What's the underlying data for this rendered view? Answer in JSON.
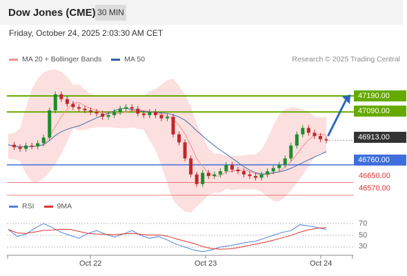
{
  "header": {
    "title": "Dow Jones (CME)",
    "timeframe": "30 MIN"
  },
  "datetime": "Friday, October 24, 2025 2:03:30 AM CET",
  "legend": {
    "ma20_label": "MA 20 + Bollinger Bands",
    "ma50_label": "MA 50"
  },
  "credit": "Research © 2025 Trading Central",
  "levels": {
    "r2": "47190.00",
    "r1": "47090.00",
    "last": "46913.00",
    "s1": "46760.00",
    "s2": "46650.00",
    "s3": "46570.00"
  },
  "rsi_legend": {
    "rsi_label": "RSI",
    "ma_label": "9MA"
  },
  "rsi_levels": [
    "70",
    "50",
    "30"
  ],
  "x_axis": [
    "Oct 22",
    "Oct 23",
    "Oct 24"
  ],
  "colors": {
    "resistance": "#66aa00",
    "support": "#3f6fdc",
    "minor_support": "#e03030",
    "last_price": "#333333",
    "candle_up": "#1e8c2e",
    "candle_down": "#c0282c",
    "bollinger_fill": "#fbd9d9",
    "ma20": "#f29090",
    "ma50": "#3f6fa8",
    "rsi": "#4f7fd9",
    "rsi_ma": "#e03030",
    "arrow": "#2b66b8"
  },
  "chart_data": {
    "type": "candlestick",
    "price_unit": "index points",
    "horizontal_levels": [
      47190,
      47090,
      46913,
      46760,
      46650,
      46570
    ],
    "close_series": [
      46885,
      46870,
      46860,
      46880,
      46875,
      46895,
      46930,
      47100,
      47200,
      47170,
      47140,
      47120,
      47110,
      47100,
      47090,
      47080,
      47060,
      47070,
      47090,
      47110,
      47120,
      47110,
      47080,
      47070,
      47090,
      47070,
      47050,
      47060,
      46950,
      46900,
      46800,
      46700,
      46640,
      46710,
      46690,
      46700,
      46720,
      46760,
      46730,
      46720,
      46700,
      46690,
      46680,
      46700,
      46720,
      46740,
      46760,
      46800,
      46880,
      46950,
      46990,
      46960,
      46940,
      46920,
      46913
    ],
    "rsi": [
      60,
      48,
      52,
      62,
      70,
      63,
      55,
      50,
      45,
      53,
      58,
      52,
      47,
      52,
      58,
      50,
      45,
      48,
      42,
      35,
      30,
      25,
      22,
      25,
      30,
      32,
      35,
      38,
      40,
      45,
      50,
      55,
      58,
      68,
      66,
      63,
      60
    ]
  }
}
